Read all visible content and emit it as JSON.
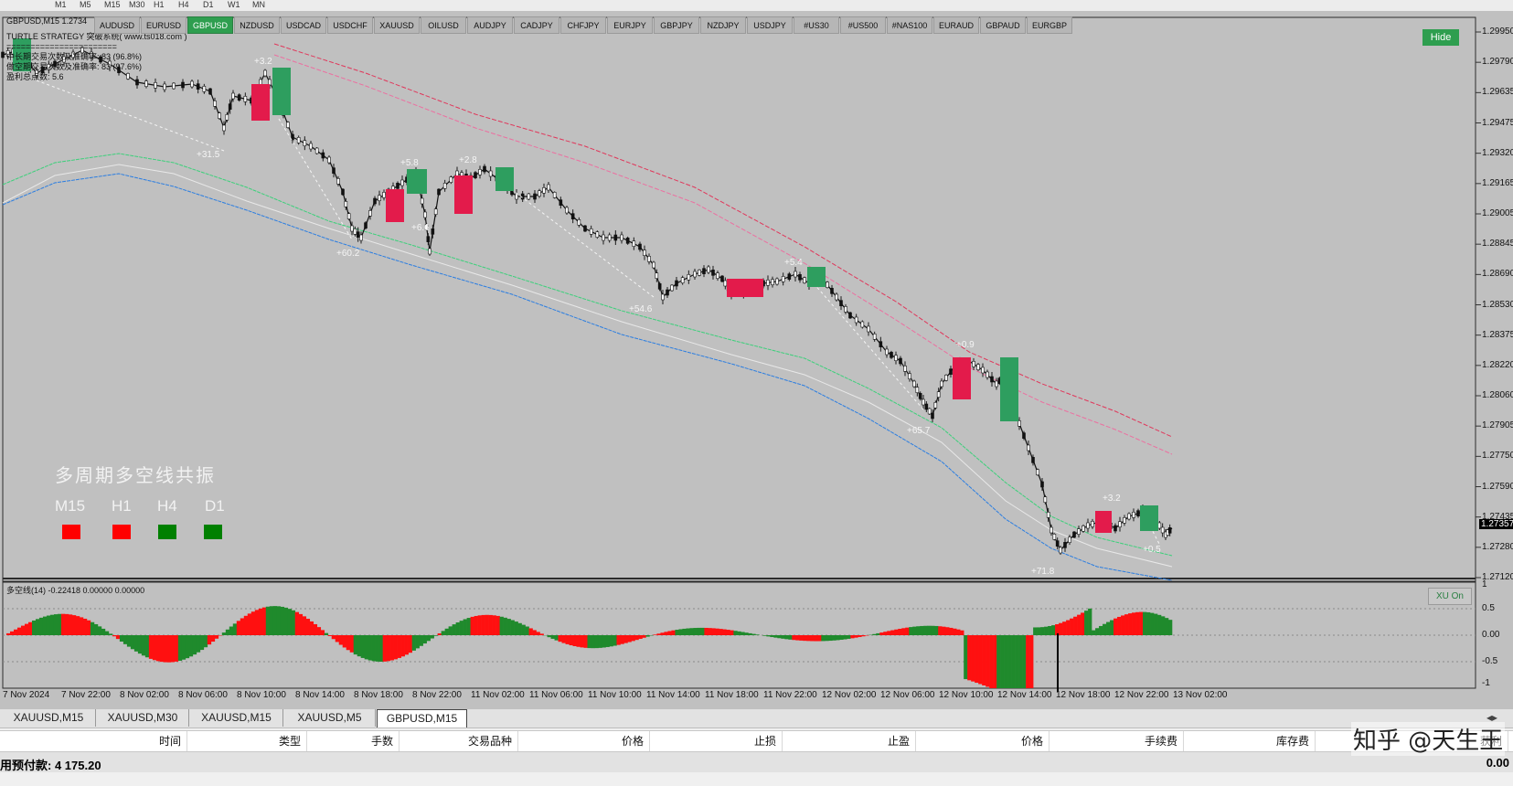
{
  "toolbar": {
    "timeframes": [
      "M1",
      "M5",
      "M15",
      "M30",
      "H1",
      "H4",
      "D1",
      "W1",
      "MN"
    ]
  },
  "header": {
    "symbol_price": "GBPUSD,M15  1.2734",
    "hide_label": "Hide",
    "info_lines": [
      "TURTLE STRATEGY 突破系统( www.ts018.com )",
      "=======================",
      "中长期交易次数及准确率: 83 (96.8%)",
      "做空期交易次数及准确率: 83 (97.6%)",
      "盈利总点数: 5.6"
    ]
  },
  "symbols": [
    {
      "label": "AUDUSD"
    },
    {
      "label": "EURUSD"
    },
    {
      "label": "GBPUSD",
      "active": true
    },
    {
      "label": "NZDUSD"
    },
    {
      "label": "USDCAD"
    },
    {
      "label": "USDCHF"
    },
    {
      "label": "XAUUSD"
    },
    {
      "label": "OILUSD"
    },
    {
      "label": "AUDJPY"
    },
    {
      "label": "CADJPY"
    },
    {
      "label": "CHFJPY"
    },
    {
      "label": "EURJPY"
    },
    {
      "label": "GBPJPY"
    },
    {
      "label": "NZDJPY"
    },
    {
      "label": "USDJPY"
    },
    {
      "label": "#US30"
    },
    {
      "label": "#US500"
    },
    {
      "label": "#NAS100"
    },
    {
      "label": "EURAUD"
    },
    {
      "label": "GBPAUD"
    },
    {
      "label": "EURGBP"
    }
  ],
  "resonance": {
    "title": "多周期多空线共振",
    "periods": [
      {
        "label": "M15",
        "state": "bear",
        "color": "#ff0000"
      },
      {
        "label": "H1",
        "state": "bear",
        "color": "#ff0000"
      },
      {
        "label": "H4",
        "state": "bull",
        "color": "#008000"
      },
      {
        "label": "D1",
        "state": "bull",
        "color": "#008000"
      }
    ]
  },
  "trade_labels": [
    "+3.2",
    "+31.5",
    "+5.8",
    "+2.8",
    "+6.6",
    "+60.2",
    "+54.6",
    "+5.4",
    "+0.9",
    "+65.7",
    "+3.2",
    "+0.5",
    "+71.8"
  ],
  "price_axis": {
    "ticks": [
      "1.29950",
      "1.29790",
      "1.29635",
      "1.29475",
      "1.29320",
      "1.29165",
      "1.29005",
      "1.28845",
      "1.28690",
      "1.28530",
      "1.28375",
      "1.28220",
      "1.28060",
      "1.27905",
      "1.27750",
      "1.27590",
      "1.27435",
      "1.27280",
      "1.27120"
    ],
    "current": "1.27357"
  },
  "indicator": {
    "label": "多空线(14) -0.22418 0.00000 0.00000",
    "toggle_label": "XU On",
    "ticks": [
      "1",
      "0.5",
      "0.00",
      "-0.5",
      "-1"
    ]
  },
  "time_axis": [
    "7 Nov 2024",
    "7 Nov 22:00",
    "8 Nov 02:00",
    "8 Nov 06:00",
    "8 Nov 10:00",
    "8 Nov 14:00",
    "8 Nov 18:00",
    "8 Nov 22:00",
    "11 Nov 02:00",
    "11 Nov 06:00",
    "11 Nov 10:00",
    "11 Nov 14:00",
    "11 Nov 18:00",
    "11 Nov 22:00",
    "12 Nov 02:00",
    "12 Nov 06:00",
    "12 Nov 10:00",
    "12 Nov 14:00",
    "12 Nov 18:00",
    "12 Nov 22:00",
    "13 Nov 02:00"
  ],
  "chart_tabs": [
    {
      "label": "XAUUSD,M15"
    },
    {
      "label": "XAUUSD,M30"
    },
    {
      "label": "XAUUSD,M15"
    },
    {
      "label": "XAUUSD,M5"
    },
    {
      "label": "GBPUSD,M15",
      "active": true
    }
  ],
  "trade_columns": [
    "时间",
    "类型",
    "手数",
    "交易品种",
    "价格",
    "止损",
    "止盈",
    "价格",
    "手续费",
    "库存费",
    "获利"
  ],
  "status": {
    "margin": "用预付款: 4 175.20",
    "profit": "0.00"
  },
  "watermark": "知乎 @天生王"
}
